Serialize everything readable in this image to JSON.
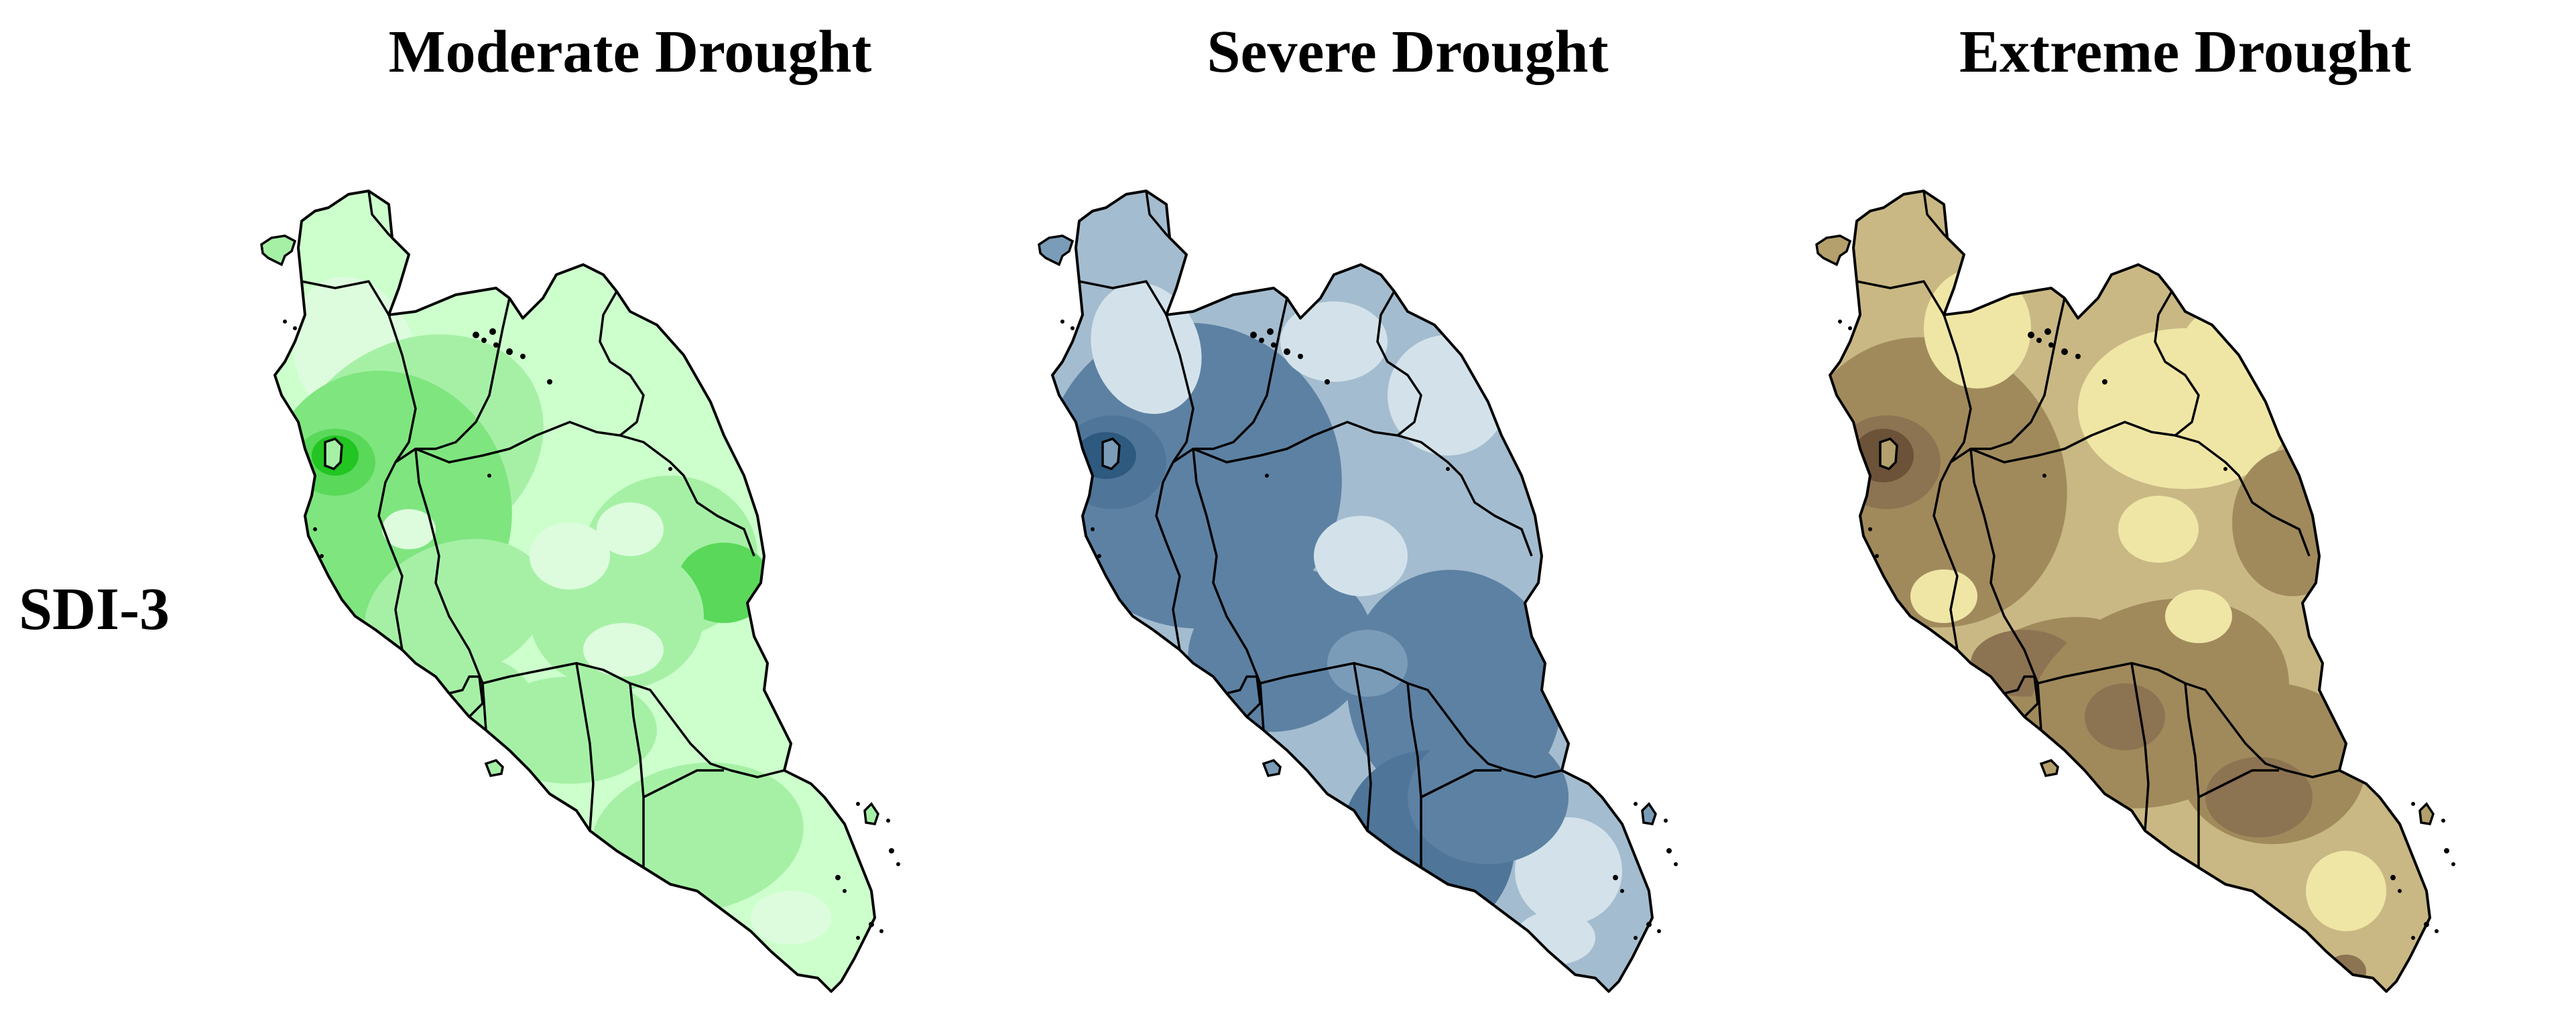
{
  "panels": [
    {
      "title": "Moderate Drought",
      "palette": {
        "base": "#ccffcc",
        "light": "#ddfcdd",
        "mid": "#a6f0a6",
        "strong": "#7fe57f",
        "darker": "#5ad85a",
        "darkest": "#22c522"
      }
    },
    {
      "title": "Severe Drought",
      "palette": {
        "base": "#a4bccf",
        "light": "#d3e2ea",
        "mid": "#7b9cb8",
        "strong": "#5d81a3",
        "darker": "#4f7598",
        "darkest": "#2f5a80"
      }
    },
    {
      "title": "Extreme Drought",
      "palette": {
        "base": "#c9b884",
        "light": "#efe6a6",
        "mid": "#b3a06c",
        "strong": "#a08a5c",
        "darker": "#8c7352",
        "darkest": "#6b5238"
      }
    }
  ],
  "row_label": "SDI-3"
}
